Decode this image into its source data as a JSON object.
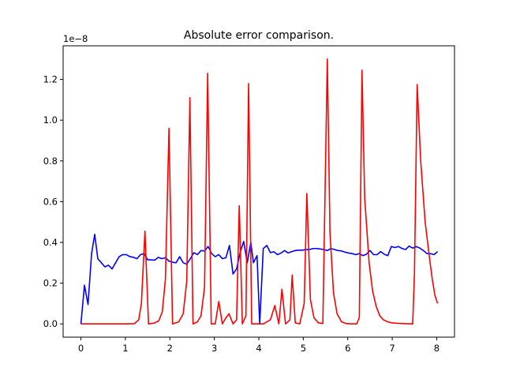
{
  "chart_data": {
    "type": "line",
    "title": "Absolute error comparison.",
    "xlabel": "",
    "ylabel": "",
    "y_scale_label": "1e−8",
    "xlim": [
      -0.4,
      8.4
    ],
    "ylim": [
      -0.065,
      1.365
    ],
    "x_ticks": [
      0,
      1,
      2,
      3,
      4,
      5,
      6,
      7,
      8
    ],
    "x_tick_labels": [
      "0",
      "1",
      "2",
      "3",
      "4",
      "5",
      "6",
      "7",
      "8"
    ],
    "y_ticks": [
      0.0,
      0.2,
      0.4,
      0.6,
      0.8,
      1.0,
      1.2
    ],
    "y_tick_labels": [
      "0.0",
      "0.2",
      "0.4",
      "0.6",
      "0.8",
      "1.0",
      "1.2"
    ],
    "grid": false,
    "legend": "none",
    "series": [
      {
        "color": "#0000ff",
        "points": [
          [
            0.0,
            0.0
          ],
          [
            0.08,
            0.19
          ],
          [
            0.16,
            0.095
          ],
          [
            0.24,
            0.345
          ],
          [
            0.31,
            0.44
          ],
          [
            0.38,
            0.32
          ],
          [
            0.46,
            0.3
          ],
          [
            0.54,
            0.28
          ],
          [
            0.62,
            0.288
          ],
          [
            0.7,
            0.27
          ],
          [
            0.78,
            0.3
          ],
          [
            0.86,
            0.33
          ],
          [
            0.94,
            0.34
          ],
          [
            1.02,
            0.34
          ],
          [
            1.1,
            0.33
          ],
          [
            1.18,
            0.327
          ],
          [
            1.26,
            0.32
          ],
          [
            1.34,
            0.34
          ],
          [
            1.42,
            0.345
          ],
          [
            1.5,
            0.315
          ],
          [
            1.58,
            0.314
          ],
          [
            1.66,
            0.313
          ],
          [
            1.74,
            0.327
          ],
          [
            1.82,
            0.32
          ],
          [
            1.9,
            0.325
          ],
          [
            1.98,
            0.308
          ],
          [
            2.06,
            0.303
          ],
          [
            2.14,
            0.3
          ],
          [
            2.22,
            0.33
          ],
          [
            2.3,
            0.3
          ],
          [
            2.38,
            0.293
          ],
          [
            2.46,
            0.32
          ],
          [
            2.54,
            0.35
          ],
          [
            2.62,
            0.34
          ],
          [
            2.7,
            0.36
          ],
          [
            2.78,
            0.358
          ],
          [
            2.86,
            0.38
          ],
          [
            2.94,
            0.345
          ],
          [
            3.02,
            0.33
          ],
          [
            3.1,
            0.34
          ],
          [
            3.18,
            0.32
          ],
          [
            3.26,
            0.325
          ],
          [
            3.34,
            0.385
          ],
          [
            3.42,
            0.245
          ],
          [
            3.5,
            0.27
          ],
          [
            3.58,
            0.35
          ],
          [
            3.66,
            0.405
          ],
          [
            3.74,
            0.3
          ],
          [
            3.82,
            0.4
          ],
          [
            3.88,
            0.3
          ],
          [
            3.96,
            0.335
          ],
          [
            4.02,
            0.0
          ],
          [
            4.1,
            0.37
          ],
          [
            4.18,
            0.385
          ],
          [
            4.26,
            0.35
          ],
          [
            4.34,
            0.354
          ],
          [
            4.42,
            0.34
          ],
          [
            4.5,
            0.348
          ],
          [
            4.58,
            0.36
          ],
          [
            4.66,
            0.348
          ],
          [
            4.74,
            0.355
          ],
          [
            4.82,
            0.36
          ],
          [
            4.9,
            0.362
          ],
          [
            4.98,
            0.362
          ],
          [
            5.06,
            0.365
          ],
          [
            5.14,
            0.365
          ],
          [
            5.22,
            0.37
          ],
          [
            5.3,
            0.37
          ],
          [
            5.38,
            0.368
          ],
          [
            5.46,
            0.365
          ],
          [
            5.54,
            0.36
          ],
          [
            5.62,
            0.37
          ],
          [
            5.7,
            0.365
          ],
          [
            5.78,
            0.36
          ],
          [
            5.86,
            0.358
          ],
          [
            5.94,
            0.352
          ],
          [
            6.02,
            0.348
          ],
          [
            6.1,
            0.345
          ],
          [
            6.18,
            0.34
          ],
          [
            6.26,
            0.345
          ],
          [
            6.34,
            0.335
          ],
          [
            6.42,
            0.342
          ],
          [
            6.5,
            0.36
          ],
          [
            6.58,
            0.34
          ],
          [
            6.66,
            0.34
          ],
          [
            6.74,
            0.355
          ],
          [
            6.82,
            0.342
          ],
          [
            6.9,
            0.335
          ],
          [
            6.98,
            0.38
          ],
          [
            7.06,
            0.375
          ],
          [
            7.14,
            0.38
          ],
          [
            7.22,
            0.37
          ],
          [
            7.3,
            0.365
          ],
          [
            7.38,
            0.382
          ],
          [
            7.46,
            0.372
          ],
          [
            7.54,
            0.38
          ],
          [
            7.62,
            0.372
          ],
          [
            7.7,
            0.36
          ],
          [
            7.78,
            0.345
          ],
          [
            7.86,
            0.345
          ],
          [
            7.94,
            0.34
          ],
          [
            8.02,
            0.355
          ]
        ]
      },
      {
        "color": "#ff0000",
        "points": [
          [
            0.0,
            0.0
          ],
          [
            0.5,
            0.0
          ],
          [
            1.0,
            0.0
          ],
          [
            1.2,
            0.001
          ],
          [
            1.3,
            0.02
          ],
          [
            1.36,
            0.1
          ],
          [
            1.44,
            0.455
          ],
          [
            1.52,
            0.0
          ],
          [
            1.65,
            0.004
          ],
          [
            1.75,
            0.015
          ],
          [
            1.83,
            0.06
          ],
          [
            1.9,
            0.22
          ],
          [
            1.98,
            0.96
          ],
          [
            2.06,
            0.0
          ],
          [
            2.2,
            0.01
          ],
          [
            2.3,
            0.05
          ],
          [
            2.38,
            0.21
          ],
          [
            2.45,
            1.11
          ],
          [
            2.52,
            0.0
          ],
          [
            2.62,
            0.01
          ],
          [
            2.7,
            0.04
          ],
          [
            2.78,
            0.18
          ],
          [
            2.85,
            1.23
          ],
          [
            2.93,
            0.0
          ],
          [
            3.02,
            0.0
          ],
          [
            3.1,
            0.11
          ],
          [
            3.18,
            0.0
          ],
          [
            3.26,
            0.03
          ],
          [
            3.33,
            0.05
          ],
          [
            3.42,
            0.0
          ],
          [
            3.5,
            0.02
          ],
          [
            3.56,
            0.58
          ],
          [
            3.63,
            0.0
          ],
          [
            3.71,
            0.04
          ],
          [
            3.77,
            1.18
          ],
          [
            3.84,
            0.0
          ],
          [
            3.96,
            0.0
          ],
          [
            4.1,
            0.0
          ],
          [
            4.26,
            0.02
          ],
          [
            4.36,
            0.09
          ],
          [
            4.45,
            0.0
          ],
          [
            4.52,
            0.17
          ],
          [
            4.6,
            0.0
          ],
          [
            4.7,
            0.02
          ],
          [
            4.75,
            0.24
          ],
          [
            4.82,
            0.005
          ],
          [
            4.92,
            0.0
          ],
          [
            5.02,
            0.1
          ],
          [
            5.08,
            0.64
          ],
          [
            5.16,
            0.12
          ],
          [
            5.24,
            0.03
          ],
          [
            5.34,
            0.005
          ],
          [
            5.44,
            0.002
          ],
          [
            5.54,
            1.3
          ],
          [
            5.6,
            0.45
          ],
          [
            5.68,
            0.15
          ],
          [
            5.76,
            0.05
          ],
          [
            5.86,
            0.01
          ],
          [
            5.96,
            0.002
          ],
          [
            6.06,
            0.0
          ],
          [
            6.2,
            0.0
          ],
          [
            6.26,
            0.03
          ],
          [
            6.32,
            1.245
          ],
          [
            6.38,
            0.62
          ],
          [
            6.48,
            0.3
          ],
          [
            6.56,
            0.16
          ],
          [
            6.64,
            0.085
          ],
          [
            6.72,
            0.04
          ],
          [
            6.8,
            0.02
          ],
          [
            6.9,
            0.01
          ],
          [
            7.0,
            0.005
          ],
          [
            7.1,
            0.003
          ],
          [
            7.2,
            0.002
          ],
          [
            7.3,
            0.001
          ],
          [
            7.46,
            0.0
          ],
          [
            7.5,
            0.25
          ],
          [
            7.56,
            1.175
          ],
          [
            7.64,
            0.8
          ],
          [
            7.74,
            0.5
          ],
          [
            7.84,
            0.32
          ],
          [
            7.9,
            0.22
          ],
          [
            7.96,
            0.14
          ],
          [
            8.02,
            0.1
          ]
        ]
      }
    ]
  }
}
